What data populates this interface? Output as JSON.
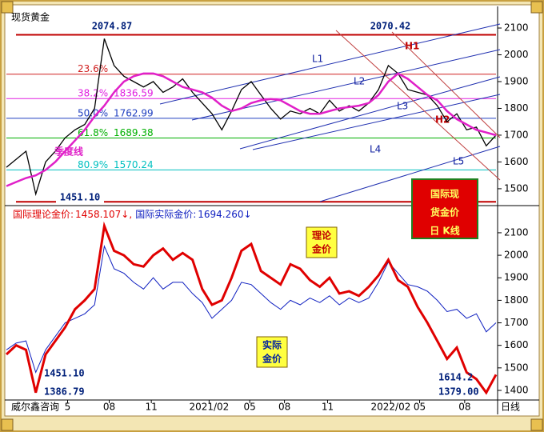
{
  "header": {
    "title": "现货黄金",
    "footer": "威尔鑫咨询",
    "period": "日线"
  },
  "chart_data": [
    {
      "type": "line",
      "x": [
        0,
        2,
        4,
        6,
        8,
        10,
        12,
        14,
        16,
        18,
        20,
        22,
        24,
        26,
        28,
        30,
        32,
        34,
        36,
        38,
        40,
        42,
        44,
        46,
        48,
        50,
        52,
        54,
        56,
        58,
        60,
        62,
        64,
        66,
        68,
        70,
        72,
        74,
        76,
        78,
        80,
        82,
        84,
        86,
        88,
        90,
        92,
        94,
        96,
        98,
        100
      ],
      "values": [
        1580,
        1610,
        1640,
        1480,
        1600,
        1640,
        1690,
        1720,
        1740,
        1800,
        2060,
        1960,
        1920,
        1900,
        1880,
        1900,
        1860,
        1880,
        1910,
        1860,
        1820,
        1780,
        1720,
        1790,
        1870,
        1900,
        1850,
        1800,
        1760,
        1790,
        1780,
        1800,
        1780,
        1830,
        1790,
        1810,
        1790,
        1820,
        1870,
        1960,
        1930,
        1870,
        1860,
        1850,
        1810,
        1750,
        1780,
        1720,
        1730,
        1660,
        1700
      ],
      "color": "#000000",
      "ma": {
        "label": "季度线",
        "color": "#e020c8",
        "values": [
          1510,
          1525,
          1540,
          1550,
          1570,
          1600,
          1640,
          1680,
          1720,
          1770,
          1810,
          1860,
          1900,
          1920,
          1930,
          1930,
          1920,
          1900,
          1880,
          1870,
          1860,
          1840,
          1810,
          1790,
          1800,
          1820,
          1830,
          1835,
          1830,
          1810,
          1790,
          1780,
          1780,
          1790,
          1800,
          1805,
          1810,
          1820,
          1850,
          1900,
          1930,
          1910,
          1880,
          1850,
          1830,
          1790,
          1760,
          1740,
          1720,
          1710,
          1700
        ]
      },
      "xlim": [
        0,
        100
      ],
      "ylim": [
        1443,
        2121
      ],
      "yticks": [
        1500,
        1600,
        1700,
        1800,
        1900,
        2000,
        2100
      ],
      "levels": [
        {
          "value": 2074.87,
          "color": "#c00000"
        },
        {
          "value": 1927.66,
          "pct": "23.6%",
          "color": "#d02020"
        },
        {
          "value": 1836.59,
          "pct": "38.2%",
          "label": "1836.59",
          "color": "#e020e0"
        },
        {
          "value": 1762.99,
          "pct": "50.0%",
          "label": "1762.99",
          "color": "#2040c0"
        },
        {
          "value": 1689.38,
          "pct": "61.8%",
          "label": "1689.38",
          "color": "#00b000"
        },
        {
          "value": 1570.24,
          "pct": "80.9%",
          "label": "1570.24",
          "color": "#00c0c0"
        },
        {
          "value": 1451.1,
          "color": "#c00000"
        }
      ],
      "annotations": [
        "2074.87",
        "2070.42",
        "1451.10"
      ],
      "trendlines": [
        "L1",
        "L2",
        "L3",
        "L4",
        "L5",
        "H1",
        "H2"
      ],
      "badge": [
        "国际现",
        "货金价",
        "日 K线"
      ]
    },
    {
      "type": "line",
      "x": [
        0,
        2,
        4,
        6,
        8,
        10,
        12,
        14,
        16,
        18,
        20,
        22,
        24,
        26,
        28,
        30,
        32,
        34,
        36,
        38,
        40,
        42,
        44,
        46,
        48,
        50,
        52,
        54,
        56,
        58,
        60,
        62,
        64,
        66,
        68,
        70,
        72,
        74,
        76,
        78,
        80,
        82,
        84,
        86,
        88,
        90,
        92,
        94,
        96,
        98,
        100
      ],
      "series": [
        {
          "name": "国际理论金价:",
          "last_label": "1458.107↓,",
          "color": "#e00000",
          "values": [
            1560,
            1600,
            1580,
            1390,
            1560,
            1620,
            1680,
            1760,
            1800,
            1850,
            2130,
            2020,
            2000,
            1960,
            1950,
            2000,
            2030,
            1980,
            2010,
            1980,
            1850,
            1780,
            1800,
            1900,
            2020,
            2050,
            1930,
            1900,
            1870,
            1960,
            1940,
            1890,
            1860,
            1900,
            1830,
            1840,
            1820,
            1860,
            1910,
            1980,
            1890,
            1860,
            1770,
            1700,
            1620,
            1540,
            1590,
            1480,
            1450,
            1390,
            1470
          ]
        },
        {
          "name": "国际实际金价:",
          "last_label": "1694.260↓",
          "color": "#1020c0",
          "values": [
            1580,
            1610,
            1620,
            1480,
            1580,
            1640,
            1700,
            1720,
            1740,
            1780,
            2040,
            1940,
            1920,
            1880,
            1850,
            1900,
            1850,
            1880,
            1880,
            1830,
            1790,
            1720,
            1760,
            1800,
            1880,
            1870,
            1830,
            1790,
            1760,
            1800,
            1780,
            1810,
            1790,
            1820,
            1780,
            1810,
            1790,
            1810,
            1880,
            1970,
            1920,
            1870,
            1860,
            1840,
            1800,
            1750,
            1760,
            1720,
            1740,
            1660,
            1700
          ]
        }
      ],
      "xlim": [
        0,
        100
      ],
      "xticks": [
        {
          "value": 12.5,
          "label": "5"
        },
        {
          "value": 21,
          "label": "08"
        },
        {
          "value": 29.6,
          "label": "11"
        },
        {
          "value": 41.4,
          "label": "2021/02"
        },
        {
          "value": 49.7,
          "label": "05"
        },
        {
          "value": 56.8,
          "label": "08"
        },
        {
          "value": 65.6,
          "label": "11"
        },
        {
          "value": 78.5,
          "label": "2022/02"
        },
        {
          "value": 84.4,
          "label": "05"
        },
        {
          "value": 93.6,
          "label": "08"
        }
      ],
      "ylim": [
        1368,
        2217
      ],
      "yticks": [
        1400,
        1500,
        1600,
        1700,
        1800,
        1900,
        2000,
        2100
      ],
      "annotations": [
        "1451.10",
        "1386.79",
        "1614.2",
        "1379.00"
      ],
      "boxes": [
        [
          "理论",
          "金价"
        ],
        [
          "实际",
          "金价"
        ]
      ]
    }
  ]
}
